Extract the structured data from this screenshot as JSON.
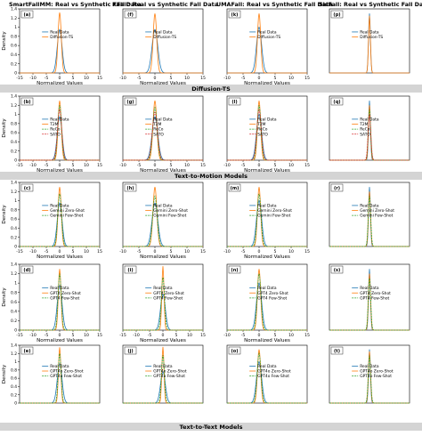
{
  "column_titles": [
    "SmartFallMM: Real vs Synthetic Fall Data",
    "KFall: Real vs Synthetic Fall Data",
    "UMAFall: Real vs Synthetic Fall Data",
    "SisFall: Real vs Synthetic Fall Data"
  ],
  "section_labels": [
    "Diffusion-TS",
    "Text-to-Motion Models",
    "Text-to-Text Models"
  ],
  "axis": {
    "xlabel": "Normalized Values",
    "ylabel": "Density"
  },
  "colors": {
    "real": "#1f77b4",
    "orange": "#ff7f0e",
    "green": "#2ca02c",
    "red": "#d62728",
    "purple": "#9467bd",
    "band": "#d4d4d4"
  },
  "chart_data": [
    {
      "row": 0,
      "col": 0,
      "tag": "(a)",
      "type": "line",
      "xlim": [
        -15,
        15
      ],
      "ylim": [
        0,
        1.4
      ],
      "xticks": [
        -15,
        -10,
        -5,
        0,
        5,
        10,
        15
      ],
      "yticks": [
        0,
        0.2,
        0.4,
        0.6,
        0.8,
        1.0,
        1.2,
        1.4
      ],
      "show_xlabel": true,
      "show_ylabel": true,
      "series": [
        {
          "name": "Real Data",
          "color": "#1f77b4",
          "peak": 0.95,
          "width": 0.9
        },
        {
          "name": "Diffusion-TS",
          "color": "#ff7f0e",
          "peak": 1.32,
          "width": 0.6
        }
      ]
    },
    {
      "row": 0,
      "col": 1,
      "tag": "(f)",
      "type": "line",
      "xlim": [
        -10,
        15
      ],
      "ylim": [
        0,
        1.4
      ],
      "xticks": [
        -10,
        -5,
        0,
        5,
        10,
        15
      ],
      "yticks": [],
      "show_xlabel": true,
      "show_ylabel": false,
      "series": [
        {
          "name": "Real Data",
          "color": "#1f77b4",
          "peak": 0.95,
          "width": 0.9
        },
        {
          "name": "Diffusion-TS",
          "color": "#ff7f0e",
          "peak": 1.3,
          "width": 0.55
        }
      ]
    },
    {
      "row": 0,
      "col": 2,
      "tag": "(k)",
      "type": "line",
      "xlim": [
        -10,
        15
      ],
      "ylim": [
        0,
        1.4
      ],
      "xticks": [
        -10,
        -5,
        0,
        5,
        10,
        15
      ],
      "yticks": [],
      "show_xlabel": true,
      "show_ylabel": false,
      "series": [
        {
          "name": "Real Data",
          "color": "#1f77b4",
          "peak": 1.0,
          "width": 0.8
        },
        {
          "name": "Diffusion-TS",
          "color": "#ff7f0e",
          "peak": 1.3,
          "width": 0.5
        }
      ]
    },
    {
      "row": 0,
      "col": 3,
      "tag": "(p)",
      "type": "line",
      "xlim": [
        -15,
        15
      ],
      "ylim": [
        0,
        1.4
      ],
      "xticks": [],
      "yticks": [],
      "show_xlabel": false,
      "show_ylabel": false,
      "series": [
        {
          "name": "Real Data",
          "color": "#1f77b4",
          "peak": 1.3,
          "width": 0.35
        },
        {
          "name": "Diffusion-TS",
          "color": "#ff7f0e",
          "peak": 1.25,
          "width": 0.35
        }
      ]
    },
    {
      "row": 1,
      "col": 0,
      "tag": "(b)",
      "type": "line",
      "xlim": [
        -15,
        15
      ],
      "ylim": [
        0,
        1.4
      ],
      "xticks": [
        -15,
        -10,
        -5,
        0,
        5,
        10,
        15
      ],
      "yticks": [
        0,
        0.2,
        0.4,
        0.6,
        0.8,
        1.0,
        1.2,
        1.4
      ],
      "show_xlabel": true,
      "show_ylabel": true,
      "series": [
        {
          "name": "Real Data",
          "color": "#1f77b4",
          "peak": 0.95,
          "width": 0.9
        },
        {
          "name": "T2M",
          "color": "#ff7f0e",
          "peak": 1.3,
          "width": 0.6
        },
        {
          "name": "ReCo",
          "color": "#2ca02c",
          "peak": 1.2,
          "width": 0.7
        },
        {
          "name": "SATO",
          "color": "#d62728",
          "peak": 1.1,
          "width": 0.8
        }
      ]
    },
    {
      "row": 1,
      "col": 1,
      "tag": "(g)",
      "type": "line",
      "xlim": [
        -10,
        15
      ],
      "ylim": [
        0,
        1.4
      ],
      "xticks": [
        -10,
        -5,
        0,
        5,
        10,
        15
      ],
      "yticks": [],
      "show_xlabel": true,
      "show_ylabel": false,
      "series": [
        {
          "name": "Real Data",
          "color": "#1f77b4",
          "peak": 0.95,
          "width": 0.9
        },
        {
          "name": "T2M",
          "color": "#ff7f0e",
          "peak": 1.3,
          "width": 0.6
        },
        {
          "name": "ReCo",
          "color": "#2ca02c",
          "peak": 1.15,
          "width": 0.7
        },
        {
          "name": "SATO",
          "color": "#d62728",
          "peak": 1.05,
          "width": 0.8
        }
      ]
    },
    {
      "row": 1,
      "col": 2,
      "tag": "(l)",
      "type": "line",
      "xlim": [
        -10,
        15
      ],
      "ylim": [
        0,
        1.4
      ],
      "xticks": [
        -10,
        -5,
        0,
        5,
        10,
        15
      ],
      "yticks": [],
      "show_xlabel": true,
      "show_ylabel": false,
      "series": [
        {
          "name": "Real Data",
          "color": "#1f77b4",
          "peak": 1.0,
          "width": 0.8
        },
        {
          "name": "T2M",
          "color": "#ff7f0e",
          "peak": 1.3,
          "width": 0.5
        },
        {
          "name": "ReCo",
          "color": "#2ca02c",
          "peak": 1.2,
          "width": 0.6
        },
        {
          "name": "SATO",
          "color": "#d62728",
          "peak": 1.1,
          "width": 0.7
        }
      ]
    },
    {
      "row": 1,
      "col": 3,
      "tag": "(q)",
      "type": "line",
      "xlim": [
        -15,
        15
      ],
      "ylim": [
        0,
        1.4
      ],
      "xticks": [],
      "yticks": [],
      "show_xlabel": false,
      "show_ylabel": false,
      "series": [
        {
          "name": "Real Data",
          "color": "#1f77b4",
          "peak": 1.3,
          "width": 0.35
        },
        {
          "name": "T2M",
          "color": "#ff7f0e",
          "peak": 1.2,
          "width": 0.4
        },
        {
          "name": "ReCo",
          "color": "#2ca02c",
          "peak": 1.1,
          "width": 0.45
        },
        {
          "name": "SATO",
          "color": "#d62728",
          "peak": 1.0,
          "width": 0.5
        }
      ]
    },
    {
      "row": 2,
      "col": 0,
      "tag": "(c)",
      "type": "line",
      "xlim": [
        -15,
        15
      ],
      "ylim": [
        0,
        1.4
      ],
      "xticks": [
        -15,
        -10,
        -5,
        0,
        5,
        10,
        15
      ],
      "yticks": [
        0,
        0.2,
        0.4,
        0.6,
        0.8,
        1.0,
        1.2,
        1.4
      ],
      "show_xlabel": true,
      "show_ylabel": true,
      "series": [
        {
          "name": "Real Data",
          "color": "#1f77b4",
          "peak": 0.95,
          "width": 0.9
        },
        {
          "name": "Gemini Zero-Shot",
          "color": "#ff7f0e",
          "peak": 1.3,
          "width": 0.6
        },
        {
          "name": "Gemini Few-Shot",
          "color": "#2ca02c",
          "peak": 1.15,
          "width": 0.7
        }
      ]
    },
    {
      "row": 2,
      "col": 1,
      "tag": "(h)",
      "type": "line",
      "xlim": [
        -10,
        15
      ],
      "ylim": [
        0,
        1.4
      ],
      "xticks": [
        -10,
        -5,
        0,
        5,
        10,
        15
      ],
      "yticks": [],
      "show_xlabel": true,
      "show_ylabel": false,
      "series": [
        {
          "name": "Real Data",
          "color": "#1f77b4",
          "peak": 0.95,
          "width": 0.9
        },
        {
          "name": "Gemini Zero-Shot",
          "color": "#ff7f0e",
          "peak": 1.3,
          "width": 0.6
        },
        {
          "name": "Gemini Few-Shot",
          "color": "#2ca02c",
          "peak": 1.1,
          "width": 0.7
        }
      ]
    },
    {
      "row": 2,
      "col": 2,
      "tag": "(m)",
      "type": "line",
      "xlim": [
        -10,
        15
      ],
      "ylim": [
        0,
        1.4
      ],
      "xticks": [
        -10,
        -5,
        0,
        5,
        10,
        15
      ],
      "yticks": [],
      "show_xlabel": true,
      "show_ylabel": false,
      "series": [
        {
          "name": "Real Data",
          "color": "#1f77b4",
          "peak": 1.0,
          "width": 0.8
        },
        {
          "name": "Gemini Zero-Shot",
          "color": "#ff7f0e",
          "peak": 1.3,
          "width": 0.5
        },
        {
          "name": "Gemini Few-Shot",
          "color": "#2ca02c",
          "peak": 1.15,
          "width": 0.6
        }
      ]
    },
    {
      "row": 2,
      "col": 3,
      "tag": "(r)",
      "type": "line",
      "xlim": [
        -15,
        15
      ],
      "ylim": [
        0,
        1.4
      ],
      "xticks": [],
      "yticks": [],
      "show_xlabel": false,
      "show_ylabel": false,
      "series": [
        {
          "name": "Real Data",
          "color": "#1f77b4",
          "peak": 1.3,
          "width": 0.35
        },
        {
          "name": "Gemini Zero-Shot",
          "color": "#ff7f0e",
          "peak": 1.2,
          "width": 0.4
        },
        {
          "name": "Gemini Few-Shot",
          "color": "#2ca02c",
          "peak": 1.1,
          "width": 0.45
        }
      ]
    },
    {
      "row": 3,
      "col": 0,
      "tag": "(d)",
      "type": "line",
      "xlim": [
        -15,
        15
      ],
      "ylim": [
        0,
        1.4
      ],
      "xticks": [
        -15,
        -10,
        -5,
        0,
        5,
        10,
        15
      ],
      "yticks": [
        0,
        0.2,
        0.4,
        0.6,
        0.8,
        1.0,
        1.2,
        1.4
      ],
      "show_xlabel": true,
      "show_ylabel": true,
      "series": [
        {
          "name": "Real Data",
          "color": "#1f77b4",
          "peak": 0.95,
          "width": 0.9
        },
        {
          "name": "GPT4 Zero-Shot",
          "color": "#ff7f0e",
          "peak": 1.3,
          "width": 0.5
        },
        {
          "name": "GPT4 Few-Shot",
          "color": "#2ca02c",
          "peak": 1.2,
          "width": 0.6
        }
      ]
    },
    {
      "row": 3,
      "col": 1,
      "tag": "(i)",
      "type": "line",
      "xlim": [
        -15,
        15
      ],
      "ylim": [
        0,
        1.75
      ],
      "xticks": [
        -15,
        -10,
        -5,
        0,
        5,
        10,
        15
      ],
      "yticks": [],
      "show_xlabel": true,
      "show_ylabel": false,
      "series": [
        {
          "name": "Real Data",
          "color": "#1f77b4",
          "peak": 0.95,
          "width": 0.9
        },
        {
          "name": "GPT4 Zero-Shot",
          "color": "#ff7f0e",
          "peak": 1.7,
          "width": 0.4
        },
        {
          "name": "GPT4 Few-Shot",
          "color": "#2ca02c",
          "peak": 1.4,
          "width": 0.6
        }
      ]
    },
    {
      "row": 3,
      "col": 2,
      "tag": "(n)",
      "type": "line",
      "xlim": [
        -10,
        15
      ],
      "ylim": [
        0,
        1.4
      ],
      "xticks": [
        -10,
        -5,
        0,
        5,
        10,
        15
      ],
      "yticks": [],
      "show_xlabel": true,
      "show_ylabel": false,
      "series": [
        {
          "name": "Real Data",
          "color": "#1f77b4",
          "peak": 1.0,
          "width": 0.8
        },
        {
          "name": "GPT4 Zero-Shot",
          "color": "#ff7f0e",
          "peak": 1.3,
          "width": 0.5
        },
        {
          "name": "GPT4 Few-Shot",
          "color": "#2ca02c",
          "peak": 1.2,
          "width": 0.6
        }
      ]
    },
    {
      "row": 3,
      "col": 3,
      "tag": "(s)",
      "type": "line",
      "xlim": [
        -15,
        15
      ],
      "ylim": [
        0,
        1.4
      ],
      "xticks": [],
      "yticks": [],
      "show_xlabel": false,
      "show_ylabel": false,
      "series": [
        {
          "name": "Real Data",
          "color": "#1f77b4",
          "peak": 1.3,
          "width": 0.35
        },
        {
          "name": "GPT4 Zero-Shot",
          "color": "#ff7f0e",
          "peak": 1.2,
          "width": 0.4
        },
        {
          "name": "GPT4 Few-Shot",
          "color": "#2ca02c",
          "peak": 1.1,
          "width": 0.45
        }
      ]
    },
    {
      "row": 4,
      "col": 0,
      "tag": "(e)",
      "type": "line",
      "xlim": [
        -15,
        15
      ],
      "ylim": [
        0,
        1.4
      ],
      "xticks": [],
      "yticks": [
        0,
        0.2,
        0.4,
        0.6,
        0.8,
        1.0,
        1.2,
        1.4
      ],
      "show_xlabel": false,
      "show_ylabel": true,
      "series": [
        {
          "name": "Real Data",
          "color": "#1f77b4",
          "peak": 0.95,
          "width": 0.9
        },
        {
          "name": "GPT4o Zero-Shot",
          "color": "#ff7f0e",
          "peak": 1.35,
          "width": 0.45
        },
        {
          "name": "GPT4o Few-Shot",
          "color": "#2ca02c",
          "peak": 1.2,
          "width": 0.55
        }
      ]
    },
    {
      "row": 4,
      "col": 1,
      "tag": "(j)",
      "type": "line",
      "xlim": [
        -15,
        15
      ],
      "ylim": [
        0,
        1.75
      ],
      "xticks": [],
      "yticks": [],
      "show_xlabel": false,
      "show_ylabel": false,
      "series": [
        {
          "name": "Real Data",
          "color": "#1f77b4",
          "peak": 0.95,
          "width": 0.9
        },
        {
          "name": "GPT4o Zero-Shot",
          "color": "#ff7f0e",
          "peak": 1.7,
          "width": 0.4
        },
        {
          "name": "GPT4o Few-Shot",
          "color": "#2ca02c",
          "peak": 1.45,
          "width": 0.55
        }
      ]
    },
    {
      "row": 4,
      "col": 2,
      "tag": "(o)",
      "type": "line",
      "xlim": [
        -10,
        15
      ],
      "ylim": [
        0,
        1.4
      ],
      "xticks": [],
      "yticks": [],
      "show_xlabel": false,
      "show_ylabel": false,
      "series": [
        {
          "name": "Real Data",
          "color": "#1f77b4",
          "peak": 1.0,
          "width": 0.8
        },
        {
          "name": "GPT4o Zero-Shot",
          "color": "#ff7f0e",
          "peak": 1.3,
          "width": 0.5
        },
        {
          "name": "GPT4o Few-Shot",
          "color": "#2ca02c",
          "peak": 1.2,
          "width": 0.6
        }
      ]
    },
    {
      "row": 4,
      "col": 3,
      "tag": "(t)",
      "type": "line",
      "xlim": [
        -15,
        15
      ],
      "ylim": [
        0,
        1.4
      ],
      "xticks": [],
      "yticks": [],
      "show_xlabel": false,
      "show_ylabel": false,
      "series": [
        {
          "name": "Real Data",
          "color": "#1f77b4",
          "peak": 1.3,
          "width": 0.35
        },
        {
          "name": "GPT4o Zero-Shot",
          "color": "#ff7f0e",
          "peak": 1.25,
          "width": 0.4
        },
        {
          "name": "GPT4o Few-Shot",
          "color": "#2ca02c",
          "peak": 1.15,
          "width": 0.45
        }
      ]
    }
  ]
}
